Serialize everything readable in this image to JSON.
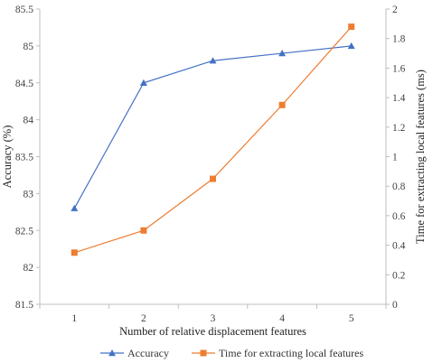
{
  "chart_data": {
    "type": "line",
    "x": [
      1,
      2,
      3,
      4,
      5
    ],
    "xlabel": "Number of relative displacement features",
    "ylabel": "Accuracy (%)",
    "y2label": "Time for extracting local features (ms)",
    "ylim": [
      81.5,
      85.5
    ],
    "y2lim": [
      0,
      2
    ],
    "xticks": [
      "1",
      "2",
      "3",
      "4",
      "5"
    ],
    "yticks": [
      "81.5",
      "82",
      "82.5",
      "83",
      "83.5",
      "84",
      "84.5",
      "85",
      "85.5"
    ],
    "y2ticks": [
      "0",
      "0.2",
      "0.4",
      "0.6",
      "0.8",
      "1",
      "1.2",
      "1.4",
      "1.6",
      "1.8",
      "2"
    ],
    "grid": false,
    "legend_position": "bottom",
    "series": [
      {
        "name": "Accuracy",
        "axis": "left",
        "marker": "triangle",
        "color": "#4472C4",
        "values": [
          82.8,
          84.5,
          84.8,
          84.9,
          85.0
        ]
      },
      {
        "name": "Time for extracting local features",
        "axis": "right",
        "marker": "square",
        "color": "#ED7D31",
        "values": [
          0.35,
          0.5,
          0.85,
          1.35,
          1.88
        ]
      }
    ]
  }
}
